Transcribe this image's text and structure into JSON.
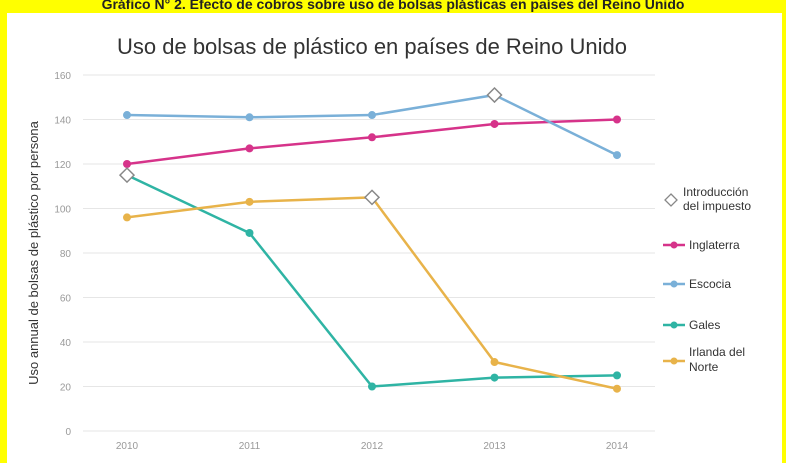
{
  "caption": "Gráfico N° 2. Efecto de cobros sobre uso de bolsas plásticas en países del Reino Unido",
  "chart_data": {
    "type": "line",
    "title": "Uso de bolsas de plástico en países de Reino Unido",
    "xlabel": "",
    "ylabel": "Uso annual de bolsas de plástico por persona",
    "x": [
      2010,
      2011,
      2012,
      2013,
      2014
    ],
    "ylim": [
      0,
      160
    ],
    "yticks": [
      0,
      20,
      40,
      60,
      80,
      100,
      120,
      140,
      160
    ],
    "grid": true,
    "legend_position": "right",
    "series": [
      {
        "name": "Inglaterra",
        "color": "#d6338a",
        "values": [
          120,
          127,
          132,
          138,
          140
        ]
      },
      {
        "name": "Escocia",
        "color": "#7ab0d8",
        "values": [
          142,
          141,
          142,
          151,
          124
        ]
      },
      {
        "name": "Gales",
        "color": "#2fb4a4",
        "values": [
          115,
          89,
          20,
          24,
          25
        ]
      },
      {
        "name": "Irlanda del Norte",
        "color": "#e8b34a",
        "values": [
          96,
          103,
          105,
          31,
          19
        ]
      }
    ],
    "tax_introduction": {
      "label_lines": [
        "Introducción",
        "del impuesto"
      ],
      "points": [
        {
          "x": 2010,
          "y": 115
        },
        {
          "x": 2012,
          "y": 105
        },
        {
          "x": 2013,
          "y": 151
        }
      ]
    }
  }
}
